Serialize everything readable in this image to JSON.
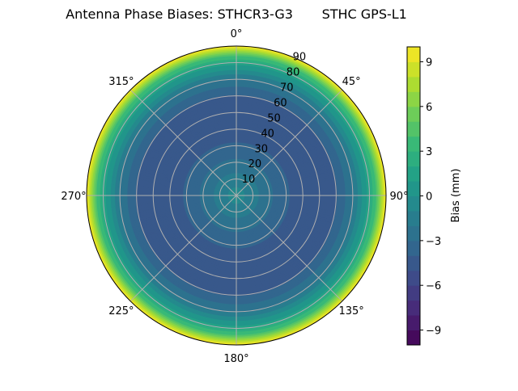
{
  "chart_data": {
    "type": "heatmap",
    "projection": "polar",
    "title": "Antenna Phase Biases: STHCR3-G3       STHC GPS-L1",
    "colormap": "viridis",
    "theta_direction": "clockwise",
    "theta_zero": "north",
    "theta_ticks": [
      "0°",
      "45°",
      "90°",
      "135°",
      "180°",
      "225°",
      "270°",
      "315°"
    ],
    "r_ticks": [
      10,
      20,
      30,
      40,
      50,
      60,
      70,
      80,
      90
    ],
    "r_lim": [
      0,
      90
    ],
    "grid": true,
    "radial_profile": {
      "r": [
        0,
        10,
        20,
        30,
        40,
        50,
        60,
        70,
        80,
        85,
        90
      ],
      "bias": [
        -0.5,
        -1.5,
        -2.8,
        -3.8,
        -4.8,
        -5.0,
        -4.2,
        -2.2,
        1.5,
        4.5,
        10
      ]
    },
    "colorbar": {
      "label": "Bias (mm)",
      "range": [
        -10,
        10
      ],
      "levels_step": 1,
      "ticks": [
        "9",
        "6",
        "3",
        "0",
        "−3",
        "−6",
        "−9"
      ],
      "tick_values": [
        9,
        6,
        3,
        0,
        -3,
        -6,
        -9
      ]
    }
  }
}
